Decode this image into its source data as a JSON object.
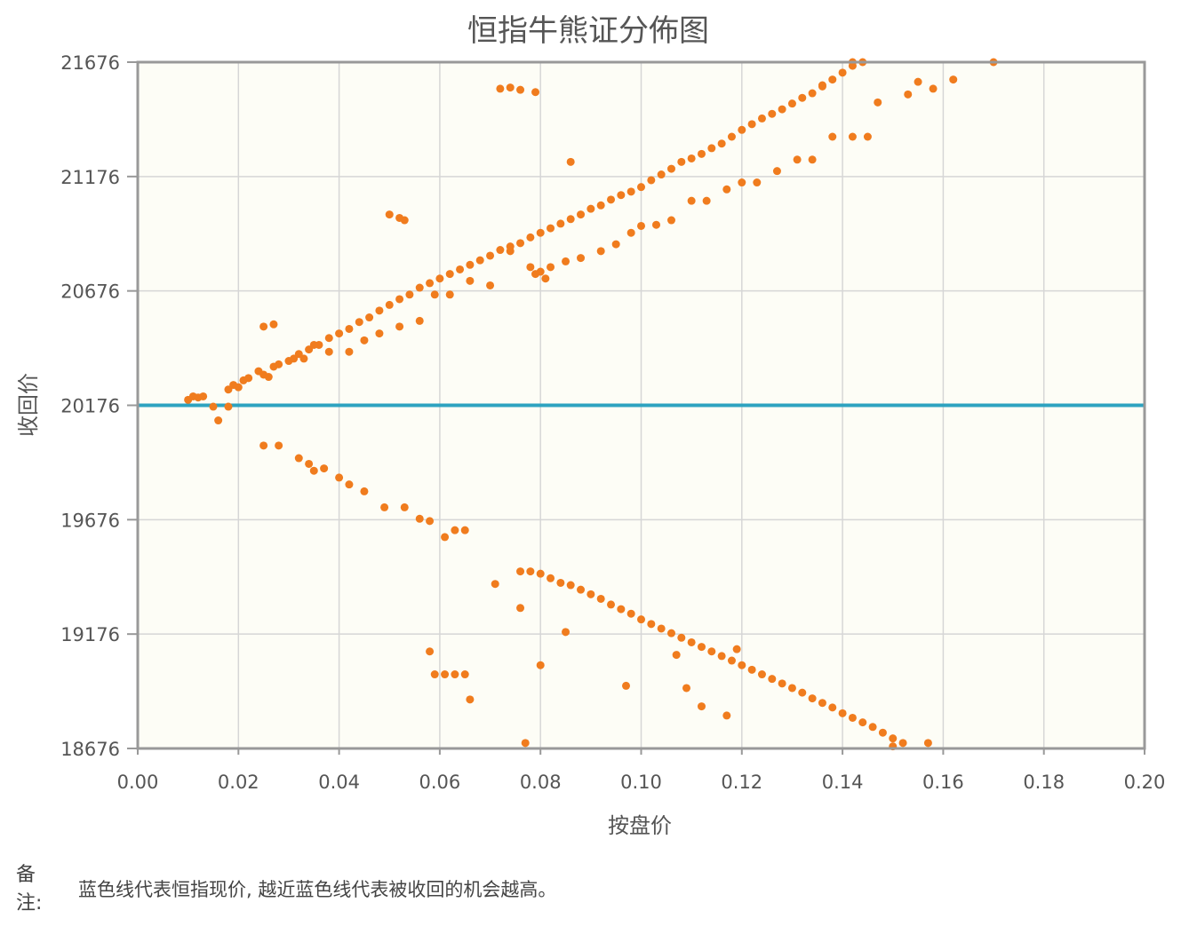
{
  "chart_data": {
    "type": "scatter",
    "title": "恒指牛熊证分佈图",
    "xlabel": "按盘价",
    "ylabel": "收回价",
    "xlim": [
      0,
      0.2
    ],
    "ylim": [
      18676,
      21676
    ],
    "x_ticks": [
      "0.00",
      "0.02",
      "0.04",
      "0.06",
      "0.08",
      "0.10",
      "0.12",
      "0.14",
      "0.16",
      "0.18",
      "0.20"
    ],
    "y_ticks": [
      "18676",
      "19176",
      "19676",
      "20176",
      "20676",
      "21176",
      "21676"
    ],
    "grid": true,
    "reference_line": {
      "y": 20176
    },
    "colors": {
      "points": "#f07c1e",
      "reference_line": "#2ea3c0",
      "plot_bg": "#fdfdf6",
      "frame": "#999999",
      "grid": "#d6d6d6"
    },
    "series": [
      {
        "points": [
          [
            0.01,
            20200
          ],
          [
            0.011,
            20215
          ],
          [
            0.012,
            20210
          ],
          [
            0.013,
            20215
          ],
          [
            0.015,
            20170
          ],
          [
            0.016,
            20110
          ],
          [
            0.018,
            20170
          ],
          [
            0.018,
            20245
          ],
          [
            0.019,
            20265
          ],
          [
            0.02,
            20255
          ],
          [
            0.021,
            20285
          ],
          [
            0.022,
            20295
          ],
          [
            0.024,
            20325
          ],
          [
            0.025,
            20310
          ],
          [
            0.026,
            20300
          ],
          [
            0.027,
            20345
          ],
          [
            0.028,
            20355
          ],
          [
            0.03,
            20370
          ],
          [
            0.031,
            20380
          ],
          [
            0.032,
            20400
          ],
          [
            0.034,
            20420
          ],
          [
            0.036,
            20440
          ],
          [
            0.038,
            20470
          ],
          [
            0.04,
            20490
          ],
          [
            0.042,
            20510
          ],
          [
            0.044,
            20540
          ],
          [
            0.046,
            20560
          ],
          [
            0.048,
            20590
          ],
          [
            0.05,
            20615
          ],
          [
            0.052,
            20640
          ],
          [
            0.054,
            20660
          ],
          [
            0.056,
            20690
          ],
          [
            0.058,
            20710
          ],
          [
            0.06,
            20730
          ],
          [
            0.062,
            20750
          ],
          [
            0.064,
            20770
          ],
          [
            0.066,
            20790
          ],
          [
            0.068,
            20810
          ],
          [
            0.07,
            20830
          ],
          [
            0.072,
            20855
          ],
          [
            0.074,
            20870
          ],
          [
            0.076,
            20885
          ],
          [
            0.078,
            20910
          ],
          [
            0.08,
            20930
          ],
          [
            0.082,
            20950
          ],
          [
            0.084,
            20970
          ],
          [
            0.086,
            20990
          ],
          [
            0.088,
            21010
          ],
          [
            0.09,
            21035
          ],
          [
            0.092,
            21050
          ],
          [
            0.094,
            21075
          ],
          [
            0.096,
            21095
          ],
          [
            0.098,
            21110
          ],
          [
            0.1,
            21130
          ],
          [
            0.102,
            21160
          ],
          [
            0.104,
            21185
          ],
          [
            0.106,
            21210
          ],
          [
            0.108,
            21240
          ],
          [
            0.11,
            21255
          ],
          [
            0.112,
            21275
          ],
          [
            0.114,
            21300
          ],
          [
            0.116,
            21320
          ],
          [
            0.118,
            21350
          ],
          [
            0.12,
            21380
          ],
          [
            0.122,
            21405
          ],
          [
            0.124,
            21430
          ],
          [
            0.126,
            21450
          ],
          [
            0.128,
            21470
          ],
          [
            0.13,
            21495
          ],
          [
            0.132,
            21520
          ],
          [
            0.134,
            21540
          ],
          [
            0.136,
            21570
          ],
          [
            0.138,
            21600
          ],
          [
            0.14,
            21630
          ],
          [
            0.142,
            21660
          ],
          [
            0.144,
            21676
          ],
          [
            0.025,
            20520
          ],
          [
            0.027,
            20530
          ],
          [
            0.033,
            20380
          ],
          [
            0.035,
            20440
          ],
          [
            0.038,
            20410
          ],
          [
            0.042,
            20410
          ],
          [
            0.045,
            20460
          ],
          [
            0.048,
            20490
          ],
          [
            0.052,
            20520
          ],
          [
            0.056,
            20545
          ],
          [
            0.059,
            20660
          ],
          [
            0.062,
            20660
          ],
          [
            0.066,
            20720
          ],
          [
            0.07,
            20700
          ],
          [
            0.074,
            20850
          ],
          [
            0.078,
            20780
          ],
          [
            0.08,
            20760
          ],
          [
            0.082,
            20780
          ],
          [
            0.085,
            20805
          ],
          [
            0.088,
            20820
          ],
          [
            0.092,
            20850
          ],
          [
            0.095,
            20880
          ],
          [
            0.098,
            20930
          ],
          [
            0.1,
            20960
          ],
          [
            0.103,
            20965
          ],
          [
            0.106,
            20985
          ],
          [
            0.11,
            21070
          ],
          [
            0.113,
            21070
          ],
          [
            0.117,
            21120
          ],
          [
            0.12,
            21150
          ],
          [
            0.123,
            21150
          ],
          [
            0.127,
            21200
          ],
          [
            0.131,
            21250
          ],
          [
            0.134,
            21250
          ],
          [
            0.138,
            21350
          ],
          [
            0.142,
            21350
          ],
          [
            0.145,
            21350
          ],
          [
            0.147,
            21500
          ],
          [
            0.153,
            21535
          ],
          [
            0.155,
            21590
          ],
          [
            0.158,
            21560
          ],
          [
            0.162,
            21600
          ],
          [
            0.17,
            21676
          ],
          [
            0.05,
            21010
          ],
          [
            0.052,
            20995
          ],
          [
            0.053,
            20985
          ],
          [
            0.072,
            21560
          ],
          [
            0.074,
            21565
          ],
          [
            0.076,
            21555
          ],
          [
            0.079,
            21545
          ],
          [
            0.086,
            21240
          ],
          [
            0.079,
            20750
          ],
          [
            0.081,
            20730
          ],
          [
            0.136,
            21575
          ],
          [
            0.142,
            21676
          ],
          [
            0.025,
            20000
          ],
          [
            0.028,
            20000
          ],
          [
            0.032,
            19945
          ],
          [
            0.034,
            19920
          ],
          [
            0.035,
            19890
          ],
          [
            0.037,
            19900
          ],
          [
            0.04,
            19860
          ],
          [
            0.042,
            19830
          ],
          [
            0.045,
            19800
          ],
          [
            0.049,
            19730
          ],
          [
            0.053,
            19730
          ],
          [
            0.056,
            19680
          ],
          [
            0.058,
            19670
          ],
          [
            0.061,
            19600
          ],
          [
            0.063,
            19630
          ],
          [
            0.065,
            19630
          ],
          [
            0.071,
            19395
          ],
          [
            0.076,
            19450
          ],
          [
            0.078,
            19450
          ],
          [
            0.08,
            19440
          ],
          [
            0.082,
            19420
          ],
          [
            0.084,
            19400
          ],
          [
            0.086,
            19390
          ],
          [
            0.088,
            19370
          ],
          [
            0.09,
            19350
          ],
          [
            0.092,
            19330
          ],
          [
            0.094,
            19305
          ],
          [
            0.096,
            19285
          ],
          [
            0.098,
            19265
          ],
          [
            0.1,
            19240
          ],
          [
            0.102,
            19220
          ],
          [
            0.104,
            19200
          ],
          [
            0.106,
            19180
          ],
          [
            0.108,
            19160
          ],
          [
            0.11,
            19140
          ],
          [
            0.112,
            19120
          ],
          [
            0.114,
            19100
          ],
          [
            0.116,
            19080
          ],
          [
            0.118,
            19060
          ],
          [
            0.12,
            19040
          ],
          [
            0.122,
            19020
          ],
          [
            0.124,
            19000
          ],
          [
            0.126,
            18980
          ],
          [
            0.128,
            18960
          ],
          [
            0.13,
            18940
          ],
          [
            0.132,
            18920
          ],
          [
            0.134,
            18895
          ],
          [
            0.136,
            18875
          ],
          [
            0.138,
            18855
          ],
          [
            0.14,
            18830
          ],
          [
            0.142,
            18810
          ],
          [
            0.144,
            18790
          ],
          [
            0.146,
            18770
          ],
          [
            0.148,
            18745
          ],
          [
            0.15,
            18720
          ],
          [
            0.152,
            18700
          ],
          [
            0.076,
            19290
          ],
          [
            0.085,
            19185
          ],
          [
            0.08,
            19040
          ],
          [
            0.058,
            19100
          ],
          [
            0.059,
            19000
          ],
          [
            0.061,
            19000
          ],
          [
            0.063,
            19000
          ],
          [
            0.065,
            19000
          ],
          [
            0.066,
            18890
          ],
          [
            0.077,
            18700
          ],
          [
            0.097,
            18950
          ],
          [
            0.107,
            19085
          ],
          [
            0.109,
            18940
          ],
          [
            0.112,
            18860
          ],
          [
            0.117,
            18820
          ],
          [
            0.119,
            19110
          ],
          [
            0.15,
            18685
          ],
          [
            0.157,
            18700
          ]
        ]
      }
    ]
  },
  "note": {
    "label": "备注:",
    "text": "蓝色线代表恒指现价, 越近蓝色线代表被收回的机会越高。"
  }
}
